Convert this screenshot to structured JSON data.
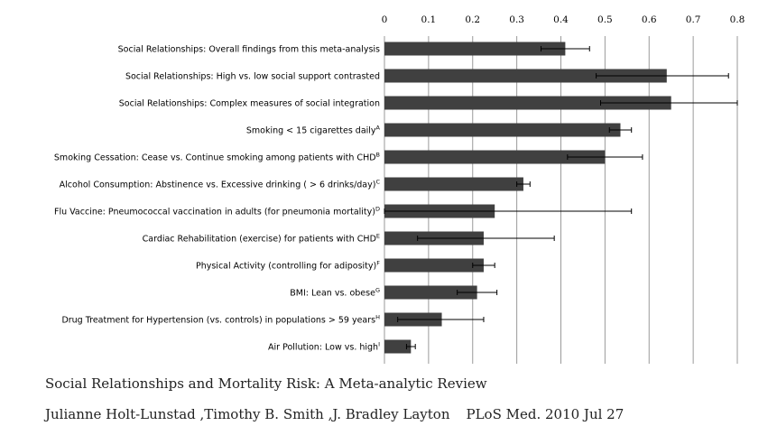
{
  "chart_data": {
    "type": "bar",
    "orientation": "horizontal",
    "categories": [
      {
        "label": "Social Relationships: Overall findings from this meta-analysis",
        "sup": ""
      },
      {
        "label": "Social Relationships: High vs. low social support contrasted",
        "sup": ""
      },
      {
        "label": "Social Relationships: Complex measures of social integration",
        "sup": ""
      },
      {
        "label": "Smoking < 15 cigarettes daily",
        "sup": "A"
      },
      {
        "label": "Smoking Cessation: Cease vs. Continue smoking among patients with CHD",
        "sup": "B"
      },
      {
        "label": "Alcohol Consumption: Abstinence vs. Excessive drinking ( > 6 drinks/day)",
        "sup": "C"
      },
      {
        "label": "Flu Vaccine: Pneumococcal vaccination in adults (for pneumonia mortality)",
        "sup": "D"
      },
      {
        "label": "Cardiac Rehabilitation (exercise) for patients with CHD",
        "sup": "E"
      },
      {
        "label": "Physical Activity (controlling for adiposity)",
        "sup": "F"
      },
      {
        "label": "BMI: Lean vs. obese",
        "sup": "G"
      },
      {
        "label": "Drug Treatment for Hypertension (vs. controls) in populations > 59 years",
        "sup": "H"
      },
      {
        "label": "Air Pollution: Low vs. high",
        "sup": "I"
      }
    ],
    "values": [
      0.41,
      0.64,
      0.65,
      0.535,
      0.5,
      0.315,
      0.25,
      0.225,
      0.225,
      0.21,
      0.13,
      0.06
    ],
    "error_low": [
      0.355,
      0.48,
      0.49,
      0.51,
      0.415,
      0.3,
      0.0,
      0.075,
      0.2,
      0.165,
      0.03,
      0.05
    ],
    "error_high": [
      0.465,
      0.78,
      0.8,
      0.56,
      0.585,
      0.33,
      0.56,
      0.385,
      0.25,
      0.255,
      0.225,
      0.07
    ],
    "x_ticks": [
      "0",
      "0.1",
      "0.2",
      "0.3",
      "0.4",
      "0.5",
      "0.6",
      "0.7",
      "0.8"
    ],
    "xlim": [
      0,
      0.8
    ],
    "x_axis_position": "top",
    "grid": true,
    "bar_color": "#404040",
    "grid_color": "#9a9a9a"
  },
  "caption": {
    "title": "Social Relationships and Mortality Risk: A Meta-analytic Review",
    "authors": "Julianne Holt-Lunstad ,Timothy B. Smith ,J. Bradley Layton",
    "journal": "PLoS Med. 2010 Jul 27"
  }
}
